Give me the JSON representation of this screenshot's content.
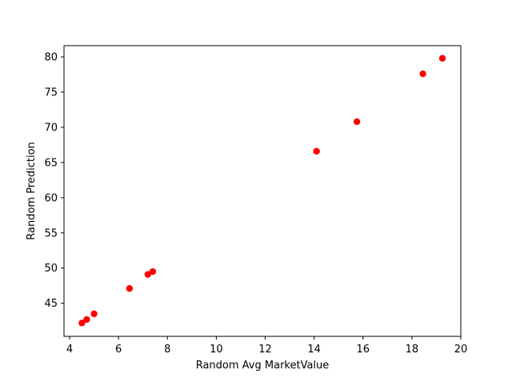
{
  "chart_data": {
    "type": "scatter",
    "title": "",
    "xlabel": "Random Avg MarketValue",
    "ylabel": "Random Prediction",
    "xlim": [
      3.77,
      20.0
    ],
    "ylim": [
      40.3,
      81.6
    ],
    "xticks": [
      4,
      6,
      8,
      10,
      12,
      14,
      16,
      18,
      20
    ],
    "yticks": [
      45,
      50,
      55,
      60,
      65,
      70,
      75,
      80
    ],
    "grid": false,
    "marker_color": "#ff0000",
    "series": [
      {
        "x": [
          4.5,
          4.7,
          5.0,
          6.45,
          7.2,
          7.4,
          14.1,
          15.75,
          18.45,
          19.25
        ],
        "y": [
          42.2,
          42.7,
          43.5,
          47.1,
          49.1,
          49.5,
          66.6,
          70.8,
          77.6,
          79.8
        ]
      }
    ]
  }
}
